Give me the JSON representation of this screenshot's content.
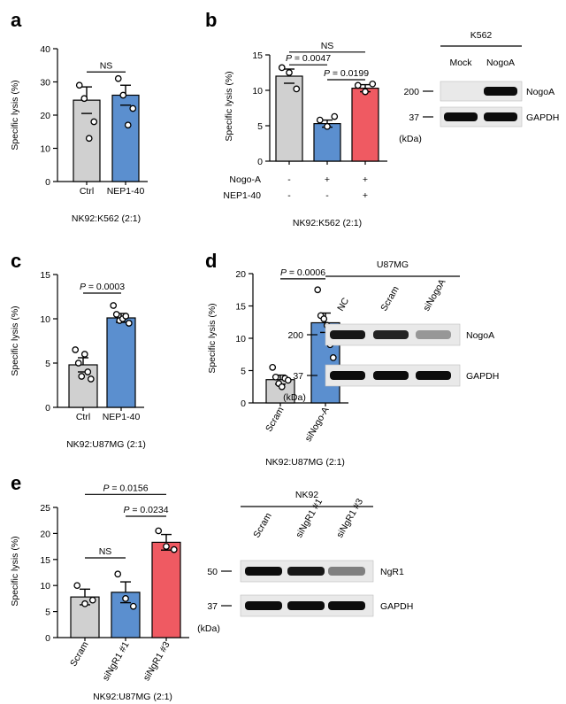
{
  "colors": {
    "gray": "#d0d0d0",
    "blue": "#5b8fcf",
    "red": "#ef5a62",
    "ink": "#000000"
  },
  "panel_letters": [
    "a",
    "b",
    "c",
    "d",
    "e"
  ],
  "ylabel": "Specific lysis (%)",
  "kda_unit": "(kDa)",
  "chart_data": [
    {
      "id": "a",
      "type": "bar",
      "ylim": [
        0,
        40
      ],
      "yticks": [
        0,
        10,
        20,
        30,
        40
      ],
      "categories": [
        "Ctrl",
        "NEP1-40"
      ],
      "values": [
        24.5,
        26.0
      ],
      "errors": [
        4.0,
        3.0
      ],
      "points": [
        [
          29,
          25,
          13,
          18
        ],
        [
          31,
          26,
          17,
          22
        ]
      ],
      "colors": [
        "gray",
        "blue"
      ],
      "subtitle": "NK92:K562 (2:1)",
      "sig": [
        {
          "a": 0,
          "b": 1,
          "y": 33,
          "label": "NS"
        }
      ]
    },
    {
      "id": "b",
      "type": "bar",
      "ylim": [
        0,
        15
      ],
      "yticks": [
        0,
        5,
        10,
        15
      ],
      "categories": [
        "",
        "",
        ""
      ],
      "values": [
        12.0,
        5.3,
        10.3
      ],
      "errors": [
        1.0,
        0.5,
        0.5
      ],
      "points": [
        [
          13.2,
          12.5,
          10.2
        ],
        [
          5.8,
          4.9,
          6.3
        ],
        [
          10.7,
          9.8,
          10.9
        ]
      ],
      "colors": [
        "gray",
        "blue",
        "red"
      ],
      "conditions": [
        {
          "label": "Nogo-A",
          "marks": [
            "-",
            "+",
            "+"
          ]
        },
        {
          "label": "NEP1-40",
          "marks": [
            "-",
            "-",
            "+"
          ]
        }
      ],
      "subtitle": "NK92:K562 (2:1)",
      "sig": [
        {
          "a": 0,
          "b": 2,
          "y": 15.4,
          "label": "NS"
        },
        {
          "a": 0,
          "b": 1,
          "y": 13.6,
          "label": "P = 0.0047"
        },
        {
          "a": 1,
          "b": 2,
          "y": 11.5,
          "label": "P = 0.0199"
        }
      ]
    },
    {
      "id": "c",
      "type": "bar",
      "ylim": [
        0,
        15
      ],
      "yticks": [
        0,
        5,
        10,
        15
      ],
      "categories": [
        "Ctrl",
        "NEP1-40"
      ],
      "values": [
        4.8,
        10.1
      ],
      "errors": [
        0.8,
        0.5
      ],
      "points": [
        [
          6.5,
          5.0,
          3.5,
          6.0,
          4.0,
          3.2
        ],
        [
          11.5,
          10.5,
          9.8,
          10.0,
          10.3,
          9.5
        ]
      ],
      "colors": [
        "gray",
        "blue"
      ],
      "subtitle": "NK92:U87MG (2:1)",
      "sig": [
        {
          "a": 0,
          "b": 1,
          "y": 12.9,
          "label": "P = 0.0003"
        }
      ]
    },
    {
      "id": "d",
      "type": "bar",
      "ylim": [
        0,
        20
      ],
      "yticks": [
        0,
        5,
        10,
        15,
        20
      ],
      "categories": [
        "Scram",
        "siNogo-A"
      ],
      "values": [
        3.6,
        12.4
      ],
      "errors": [
        0.7,
        1.5
      ],
      "points": [
        [
          5.5,
          4.0,
          3.0,
          2.5,
          3.8,
          3.5
        ],
        [
          17.5,
          13.5,
          13.0,
          12.0,
          9.0,
          7.0
        ]
      ],
      "colors": [
        "gray",
        "blue"
      ],
      "subtitle": "NK92:U87MG (2:1)",
      "sig": [
        {
          "a": 0,
          "b": 1,
          "y": 19.2,
          "label": "P = 0.0006"
        }
      ]
    },
    {
      "id": "e",
      "type": "bar",
      "ylim": [
        0,
        25
      ],
      "yticks": [
        0,
        5,
        10,
        15,
        20,
        25
      ],
      "categories": [
        "Scram",
        "siNgR1 #1",
        "siNgR1 #3"
      ],
      "values": [
        7.8,
        8.7,
        18.3
      ],
      "errors": [
        1.5,
        2.0,
        1.5
      ],
      "points": [
        [
          10.0,
          6.5,
          7.2
        ],
        [
          12.2,
          7.5,
          6.0
        ],
        [
          20.5,
          17.5,
          16.9
        ]
      ],
      "colors": [
        "gray",
        "blue",
        "red"
      ],
      "subtitle": "NK92:U87MG (2:1)",
      "sig": [
        {
          "a": 0,
          "b": 2,
          "y": 27.5,
          "label": "P = 0.0156"
        },
        {
          "a": 1,
          "b": 2,
          "y": 23.3,
          "label": "P = 0.0234"
        },
        {
          "a": 0,
          "b": 1,
          "y": 15.3,
          "label": "NS"
        }
      ]
    }
  ],
  "blots": [
    {
      "id": "b",
      "cell": "K562",
      "lanes": [
        "Mock",
        "NogoA"
      ],
      "rows": [
        {
          "protein": "NogoA",
          "marker": "200",
          "intensities": [
            0.0,
            0.95
          ]
        },
        {
          "protein": "GAPDH",
          "marker": "37",
          "intensities": [
            0.95,
            0.95
          ]
        }
      ]
    },
    {
      "id": "d",
      "cell": "U87MG",
      "lanes": [
        "NC",
        "Scram",
        "siNogoA"
      ],
      "rows": [
        {
          "protein": "NogoA",
          "marker": "200",
          "intensities": [
            0.9,
            0.85,
            0.35
          ]
        },
        {
          "protein": "GAPDH",
          "marker": "37",
          "intensities": [
            0.95,
            0.95,
            0.95
          ]
        }
      ]
    },
    {
      "id": "e",
      "cell": "NK92",
      "lanes": [
        "Scram",
        "siNgR1 #1",
        "siNgR1 #3"
      ],
      "rows": [
        {
          "protein": "NgR1",
          "marker": "50",
          "intensities": [
            0.95,
            0.9,
            0.45
          ]
        },
        {
          "protein": "GAPDH",
          "marker": "37",
          "intensities": [
            0.95,
            0.95,
            0.95
          ]
        }
      ]
    }
  ]
}
